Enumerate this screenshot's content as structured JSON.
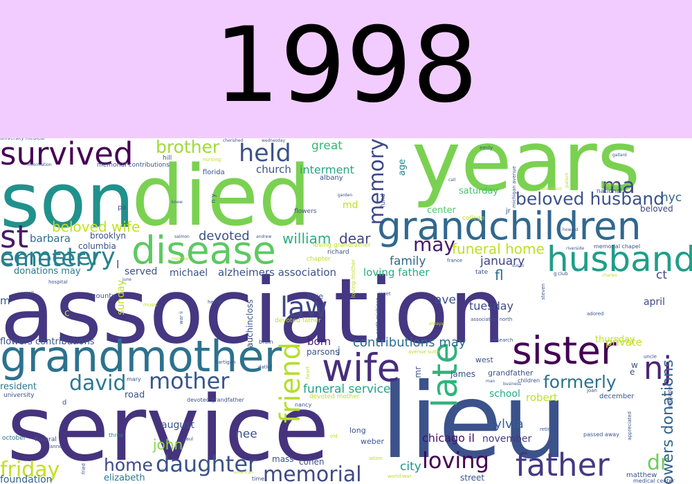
{
  "year": "1998",
  "background": "#ffffff",
  "band_color": "#f2ccff",
  "words": [
    {
      "t": "association",
      "c": "#453781"
    },
    {
      "t": "service",
      "c": "#46337e"
    },
    {
      "t": "lieu",
      "c": "#3b528b"
    },
    {
      "t": "son",
      "c": "#21918c"
    },
    {
      "t": "died",
      "c": "#7ad151"
    },
    {
      "t": "years",
      "c": "#7ad151"
    },
    {
      "t": "grandmother",
      "c": "#2c728e"
    },
    {
      "t": "grandchildren",
      "c": "#31688e"
    },
    {
      "t": "disease",
      "c": "#5ec962"
    },
    {
      "t": "husband",
      "c": "#1f9e89"
    },
    {
      "t": "sister",
      "c": "#440154"
    },
    {
      "t": "wife",
      "c": "#472d7b"
    },
    {
      "t": "survived",
      "c": "#440154"
    },
    {
      "t": "father",
      "c": "#443983"
    },
    {
      "t": "nj",
      "c": "#482576"
    },
    {
      "t": "cemetery",
      "c": "#26828e"
    },
    {
      "t": "st",
      "c": "#481a6c"
    },
    {
      "t": "law",
      "c": "#404688"
    },
    {
      "t": "held",
      "c": "#3b528b"
    },
    {
      "t": "late",
      "c": "#2fb47c"
    },
    {
      "t": "mother",
      "c": "#39568c"
    },
    {
      "t": "daughter",
      "c": "#3b528b"
    },
    {
      "t": "friend",
      "c": "#b5de2b"
    },
    {
      "t": "memory",
      "c": "#3e4989"
    },
    {
      "t": "memorial",
      "c": "#3e4989"
    },
    {
      "t": "brother",
      "c": "#a0da39"
    },
    {
      "t": "loving",
      "c": "#440154"
    },
    {
      "t": "david",
      "c": "#2a788e"
    },
    {
      "t": "ma",
      "c": "#3f4788"
    },
    {
      "t": "beloved husband",
      "c": "#3b528b"
    },
    {
      "t": "formerly",
      "c": "#2d708e"
    },
    {
      "t": "may",
      "c": "#48186a"
    },
    {
      "t": "home",
      "c": "#3e4a89"
    },
    {
      "t": "dr",
      "c": "#6ccd5a"
    },
    {
      "t": "friday",
      "c": "#c2df23"
    },
    {
      "t": "john",
      "c": "#85d54a"
    },
    {
      "t": "flowers donations",
      "c": "#33638d"
    },
    {
      "t": "beloved wife",
      "c": "#c2df23"
    },
    {
      "t": "william",
      "c": "#29af7f"
    },
    {
      "t": "dear",
      "c": "#404387"
    },
    {
      "t": "contributions may",
      "c": "#2f6b8e"
    },
    {
      "t": "funeral home",
      "c": "#bddf26"
    },
    {
      "t": "funeral service",
      "c": "#20a386"
    },
    {
      "t": "alzheimers association",
      "c": "#3b528b"
    },
    {
      "t": "great",
      "c": "#38b977"
    },
    {
      "t": "church",
      "c": "#3b528b"
    },
    {
      "t": "interment",
      "c": "#22a884"
    },
    {
      "t": "devoted",
      "c": "#3b528b"
    },
    {
      "t": "barbara",
      "c": "#2e6f8e"
    },
    {
      "t": "family",
      "c": "#31688e"
    },
    {
      "t": "loving father",
      "c": "#27ad81"
    },
    {
      "t": "private",
      "c": "#c8e020"
    },
    {
      "t": "tuesday",
      "c": "#3e4989"
    },
    {
      "t": "chicago il",
      "c": "#471063"
    },
    {
      "t": "sylvia",
      "c": "#35608d"
    },
    {
      "t": "city",
      "c": "#21918c"
    },
    {
      "t": "nee",
      "c": "#3b528b"
    },
    {
      "t": "born",
      "c": "#481f70"
    },
    {
      "t": "ave",
      "c": "#3b528b"
    },
    {
      "t": "january",
      "c": "#414487"
    },
    {
      "t": "fl",
      "c": "#2e6e8e"
    },
    {
      "t": "nyc",
      "c": "#33638d"
    },
    {
      "t": "ct",
      "c": "#3e4989"
    },
    {
      "t": "emetery",
      "c": "#26828e"
    },
    {
      "t": "robert",
      "c": "#bddf26"
    },
    {
      "t": "school",
      "c": "#25ab82"
    },
    {
      "t": "august",
      "c": "#3b528b"
    },
    {
      "t": "november",
      "c": "#443983"
    },
    {
      "t": "april",
      "c": "#3e4989"
    },
    {
      "t": "thursday",
      "c": "#bddf26"
    },
    {
      "t": "sunday",
      "c": "#bddf26"
    },
    {
      "t": "saturday",
      "c": "#44bf70"
    },
    {
      "t": "center",
      "c": "#52c569"
    },
    {
      "t": "age",
      "c": "#25838e"
    },
    {
      "t": "md",
      "c": "#c2df23"
    },
    {
      "t": "beloved",
      "c": "#414487"
    },
    {
      "t": "served",
      "c": "#3b528b"
    },
    {
      "t": "michael",
      "c": "#3b528b"
    },
    {
      "t": "brooklyn",
      "c": "#3b528b"
    },
    {
      "t": "columbia",
      "c": "#3b528b"
    },
    {
      "t": "road",
      "c": "#3b528b"
    },
    {
      "t": "elizabeth",
      "c": "#2a788e"
    },
    {
      "t": "foundation",
      "c": "#34618d"
    },
    {
      "t": "flowers contributions",
      "c": "#3b528b"
    },
    {
      "t": "resident",
      "c": "#2a788e"
    },
    {
      "t": "parsons",
      "c": "#3b528b"
    },
    {
      "t": "auchincloss",
      "c": "#3b528b"
    },
    {
      "t": "mass",
      "c": "#3b528b"
    },
    {
      "t": "cohen",
      "c": "#3b528b"
    },
    {
      "t": "love",
      "c": "#3b528b"
    },
    {
      "t": "mr",
      "c": "#3b528b"
    },
    {
      "t": "james",
      "c": "#3b528b"
    },
    {
      "t": "grandfather",
      "c": "#3b528b"
    },
    {
      "t": "west",
      "c": "#3b528b"
    },
    {
      "t": "december",
      "c": "#3b528b"
    },
    {
      "t": "matthew",
      "c": "#3b528b"
    },
    {
      "t": "street",
      "c": "#3b528b"
    },
    {
      "t": "weber",
      "c": "#3b528b"
    },
    {
      "t": "long",
      "c": "#3b528b"
    },
    {
      "t": "county",
      "c": "#3b528b"
    },
    {
      "t": "pa",
      "c": "#3b528b"
    },
    {
      "t": "albany",
      "c": "#3b528b"
    },
    {
      "t": "florida",
      "c": "#3b528b"
    },
    {
      "t": "hill",
      "c": "#3b528b"
    },
    {
      "t": "chapter",
      "c": "#bddf26"
    },
    {
      "t": "richard",
      "c": "#3b528b"
    },
    {
      "t": "flowers",
      "c": "#3b528b"
    },
    {
      "t": "fund",
      "c": "#3b528b"
    },
    {
      "t": "jr",
      "c": "#3b528b"
    },
    {
      "t": "college",
      "c": "#bddf26"
    },
    {
      "t": "national",
      "c": "#3b528b"
    },
    {
      "t": "memorial contributions",
      "c": "#3b528b"
    },
    {
      "t": "loving grandfather",
      "c": "#bddf26"
    },
    {
      "t": "devoted father",
      "c": "#bddf26"
    },
    {
      "t": "devoted mother",
      "c": "#bddf26"
    },
    {
      "t": "devoted grandfather",
      "c": "#3b528b"
    },
    {
      "t": "donations may",
      "c": "#2a788e"
    },
    {
      "t": "memorial chapel",
      "c": "#3b528b"
    },
    {
      "t": "association north",
      "c": "#3b528b"
    },
    {
      "t": "michigan avenue",
      "c": "#3b528b"
    },
    {
      "t": "north michigan",
      "c": "#3b528b"
    },
    {
      "t": "loving mother",
      "c": "#bddf26"
    },
    {
      "t": "medical center",
      "c": "#3b528b"
    },
    {
      "t": "passed away",
      "c": "#3b528b"
    },
    {
      "t": "war ii",
      "c": "#3b528b"
    },
    {
      "t": "world war",
      "c": "#bddf26"
    },
    {
      "t": "avenue suite",
      "c": "#bddf26"
    },
    {
      "t": "nancy",
      "c": "#3b528b"
    },
    {
      "t": "mary",
      "c": "#3b528b"
    },
    {
      "t": "paul",
      "c": "#3b528b"
    },
    {
      "t": "children",
      "c": "#3b528b"
    },
    {
      "t": "appreciated",
      "c": "#3b528b"
    },
    {
      "t": "graduated",
      "c": "#3b528b"
    },
    {
      "t": "university",
      "c": "#3b528b"
    },
    {
      "t": "university medical",
      "c": "#3b528b"
    },
    {
      "t": "hospital",
      "c": "#3b528b"
    },
    {
      "t": "health",
      "c": "#3b528b"
    },
    {
      "t": "music",
      "c": "#bddf26"
    },
    {
      "t": "brain",
      "c": "#3b528b"
    },
    {
      "t": "datlof",
      "c": "#3b528b"
    },
    {
      "t": "hartigan",
      "c": "#3b528b"
    },
    {
      "t": "research",
      "c": "#3b528b"
    },
    {
      "t": "retired",
      "c": "#3b528b"
    },
    {
      "t": "retirement",
      "c": "#bddf26"
    },
    {
      "t": "business",
      "c": "#3b528b"
    },
    {
      "t": "always",
      "c": "#bddf26"
    },
    {
      "t": "adored",
      "c": "#3b528b"
    },
    {
      "t": "steven",
      "c": "#3b528b"
    },
    {
      "t": "howard",
      "c": "#3b528b"
    },
    {
      "t": "riverside",
      "c": "#3b528b"
    },
    {
      "t": "charles",
      "c": "#bddf26"
    },
    {
      "t": "club",
      "c": "#3b528b"
    },
    {
      "t": "susan",
      "c": "#3b528b"
    },
    {
      "t": "tate",
      "c": "#3b528b"
    },
    {
      "t": "france",
      "c": "#3b528b"
    },
    {
      "t": "emily",
      "c": "#3b528b"
    },
    {
      "t": "gallard",
      "c": "#3b528b"
    },
    {
      "t": "maria",
      "c": "#bddf26"
    },
    {
      "t": "patient",
      "c": "#bddf26"
    },
    {
      "t": "call",
      "c": "#3b528b"
    },
    {
      "t": "garden",
      "c": "#3b528b"
    },
    {
      "t": "nursing",
      "c": "#bddf26"
    },
    {
      "t": "knew",
      "c": "#3b528b"
    },
    {
      "t": "salmon",
      "c": "#3b528b"
    },
    {
      "t": "andrew",
      "c": "#3b528b"
    },
    {
      "t": "information",
      "c": "#3b528b"
    },
    {
      "t": "cherished",
      "c": "#3b528b"
    },
    {
      "t": "wednesday",
      "c": "#3b528b"
    },
    {
      "t": "october",
      "c": "#2a788e"
    },
    {
      "t": "three",
      "c": "#2a788e"
    },
    {
      "t": "anne",
      "c": "#3b528b"
    },
    {
      "t": "adam",
      "c": "#bddf26"
    },
    {
      "t": "joan",
      "c": "#3b528b"
    },
    {
      "t": "uncle",
      "c": "#3b528b"
    },
    {
      "t": "man",
      "c": "#3b528b"
    },
    {
      "t": "heart",
      "c": "#bddf26"
    },
    {
      "t": "janet",
      "c": "#3b528b"
    },
    {
      "t": "american",
      "c": "#bddf26"
    },
    {
      "t": "time",
      "c": "#3b528b"
    },
    {
      "t": "fried",
      "c": "#3b528b"
    },
    {
      "t": "old",
      "c": "#bddf26"
    },
    {
      "t": "june",
      "c": "#3b528b"
    },
    {
      "t": "n y",
      "c": "#3b528b"
    },
    {
      "t": "member",
      "c": "#bddf26"
    },
    {
      "t": "funeral",
      "c": "#3b528b"
    },
    {
      "t": "well",
      "c": "#3b528b"
    },
    {
      "t": "m",
      "c": "#3b528b"
    },
    {
      "t": "c",
      "c": "#bddf26"
    },
    {
      "t": "l",
      "c": "#3b528b"
    },
    {
      "t": "j",
      "c": "#3b528b"
    },
    {
      "t": "d",
      "c": "#3b528b"
    },
    {
      "t": "e",
      "c": "#3b528b"
    },
    {
      "t": "w",
      "c": "#3b528b"
    },
    {
      "t": "g",
      "c": "#3b528b"
    },
    {
      "t": "n",
      "c": "#3b528b"
    }
  ]
}
